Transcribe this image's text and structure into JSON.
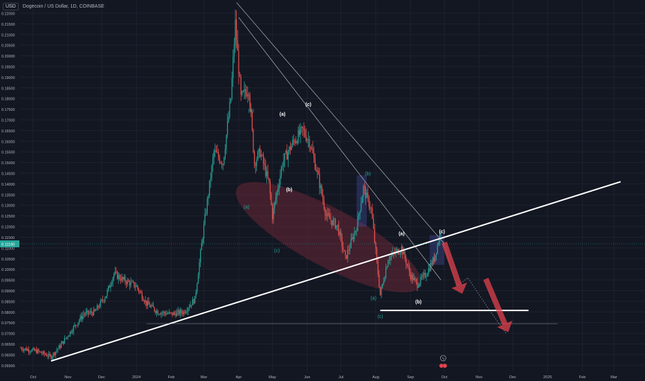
{
  "header": {
    "currency": "USD",
    "symbol": "Dogecoin / US Dollar, 1D, COINBASE"
  },
  "colors": {
    "background": "#131722",
    "grid": "#1e2230",
    "up": "#26a69a",
    "down": "#ef5350",
    "trendline": "#ffffff",
    "ellipse": "#7a2a3a",
    "box": "#4a4fa8",
    "arrow": "#e0424d",
    "label_white": "#ffffff",
    "label_teal": "#26a69a"
  },
  "chart_data": {
    "type": "candlestick",
    "y_ticks": [
      "0.22000",
      "0.21500",
      "0.21000",
      "0.20500",
      "0.20000",
      "0.19500",
      "0.19000",
      "0.18500",
      "0.18000",
      "0.17500",
      "0.17000",
      "0.16500",
      "0.16000",
      "0.15500",
      "0.15000",
      "0.14500",
      "0.14000",
      "0.13500",
      "0.13000",
      "0.12500",
      "0.12000",
      "0.11500",
      "0.11000",
      "0.10500",
      "0.10000",
      "0.09500",
      "0.09000",
      "0.08500",
      "0.08000",
      "0.07500",
      "0.07000",
      "0.06500",
      "0.06000",
      "0.05500"
    ],
    "x_ticks": [
      "Oct",
      "Nov",
      "Dec",
      "2024",
      "Feb",
      "Mar",
      "Apr",
      "May",
      "Jun",
      "Jul",
      "Aug",
      "Sep",
      "Oct",
      "Nov",
      "Dec",
      "2025",
      "Feb",
      "Mar"
    ],
    "last_price": "0.11190",
    "x_range": [
      "2023-09-20",
      "2025-03-25"
    ],
    "y_range": [
      0.0525,
      0.2255
    ],
    "price_path": [
      [
        "2023-09-20",
        0.063
      ],
      [
        "2023-10-05",
        0.0615
      ],
      [
        "2023-10-17",
        0.059
      ],
      [
        "2023-10-25",
        0.064
      ],
      [
        "2023-11-05",
        0.072
      ],
      [
        "2023-11-15",
        0.079
      ],
      [
        "2023-11-25",
        0.08
      ],
      [
        "2023-12-05",
        0.088
      ],
      [
        "2023-12-12",
        0.098
      ],
      [
        "2023-12-20",
        0.095
      ],
      [
        "2024-01-01",
        0.092
      ],
      [
        "2024-01-10",
        0.084
      ],
      [
        "2024-01-20",
        0.08
      ],
      [
        "2024-02-01",
        0.079
      ],
      [
        "2024-02-12",
        0.08
      ],
      [
        "2024-02-22",
        0.086
      ],
      [
        "2024-03-01",
        0.12
      ],
      [
        "2024-03-10",
        0.155
      ],
      [
        "2024-03-18",
        0.15
      ],
      [
        "2024-03-25",
        0.18
      ],
      [
        "2024-03-29",
        0.215
      ],
      [
        "2024-04-03",
        0.18
      ],
      [
        "2024-04-10",
        0.185
      ],
      [
        "2024-04-15",
        0.15
      ],
      [
        "2024-04-20",
        0.155
      ],
      [
        "2024-04-28",
        0.14
      ],
      [
        "2024-05-01",
        0.125
      ],
      [
        "2024-05-10",
        0.15
      ],
      [
        "2024-05-20",
        0.16
      ],
      [
        "2024-05-28",
        0.165
      ],
      [
        "2024-06-03",
        0.16
      ],
      [
        "2024-06-10",
        0.145
      ],
      [
        "2024-06-18",
        0.125
      ],
      [
        "2024-06-28",
        0.12
      ],
      [
        "2024-07-05",
        0.105
      ],
      [
        "2024-07-15",
        0.12
      ],
      [
        "2024-07-21",
        0.138
      ],
      [
        "2024-07-28",
        0.128
      ],
      [
        "2024-08-05",
        0.088
      ],
      [
        "2024-08-12",
        0.105
      ],
      [
        "2024-08-24",
        0.11
      ],
      [
        "2024-09-01",
        0.097
      ],
      [
        "2024-09-07",
        0.093
      ],
      [
        "2024-09-15",
        0.098
      ],
      [
        "2024-09-22",
        0.105
      ],
      [
        "2024-09-28",
        0.118
      ]
    ],
    "drawings": {
      "support_line": [
        [
          "2023-10-17",
          0.057
        ],
        [
          "2025-03-07",
          0.141
        ]
      ],
      "descending_line_1": [
        [
          "2024-03-30",
          0.225
        ],
        [
          "2024-10-01",
          0.112
        ]
      ],
      "descending_line_2": [
        [
          "2024-04-01",
          0.218
        ],
        [
          "2024-09-28",
          0.095
        ]
      ],
      "horizontal_1": [
        [
          "2024-08-05",
          0.0807
        ],
        [
          "2024-12-15",
          0.0807
        ]
      ],
      "horizontal_2": [
        [
          "2024-01-10",
          0.0745
        ],
        [
          "2025-01-10",
          0.0745
        ]
      ],
      "box_1": [
        [
          "2024-07-15",
          0.144
        ],
        [
          "2024-07-24",
          0.12
        ]
      ],
      "box_2": [
        [
          "2024-09-18",
          0.116
        ],
        [
          "2024-10-01",
          0.102
        ]
      ]
    },
    "wave_labels": [
      {
        "text": "(b)",
        "date": "2024-04-12",
        "price": 0.1735,
        "color": "teal"
      },
      {
        "text": "(a)",
        "date": "2024-04-08",
        "price": 0.1285,
        "color": "teal"
      },
      {
        "text": "(a)",
        "date": "2024-05-10",
        "price": 0.172,
        "color": "white"
      },
      {
        "text": "(b)",
        "date": "2024-05-16",
        "price": 0.1365,
        "color": "white"
      },
      {
        "text": "(c)",
        "date": "2024-05-05",
        "price": 0.108,
        "color": "teal"
      },
      {
        "text": "(c)",
        "date": "2024-06-02",
        "price": 0.1765,
        "color": "white"
      },
      {
        "text": "(b)",
        "date": "2024-07-25",
        "price": 0.144,
        "color": "teal"
      },
      {
        "text": "(a)",
        "date": "2024-07-30",
        "price": 0.0858,
        "color": "teal"
      },
      {
        "text": "(c)",
        "date": "2024-08-05",
        "price": 0.0772,
        "color": "teal"
      },
      {
        "text": "(a)",
        "date": "2024-08-24",
        "price": 0.116,
        "color": "white"
      },
      {
        "text": "(b)",
        "date": "2024-09-08",
        "price": 0.084,
        "color": "white"
      },
      {
        "text": "(c)",
        "date": "2024-09-29",
        "price": 0.117,
        "color": "white"
      }
    ],
    "markers": [
      "ϟ"
    ]
  }
}
